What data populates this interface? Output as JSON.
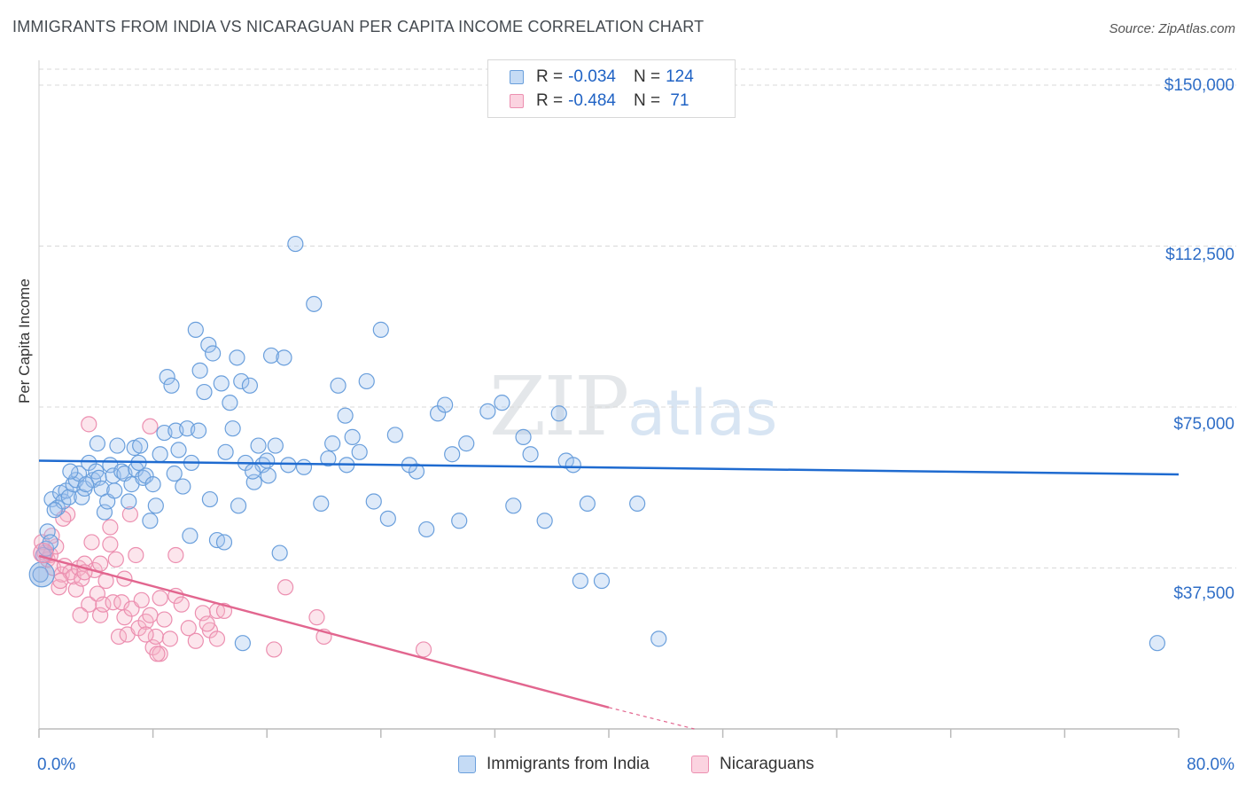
{
  "title": "IMMIGRANTS FROM INDIA VS NICARAGUAN PER CAPITA INCOME CORRELATION CHART",
  "source": "Source: ZipAtlas.com",
  "watermark": {
    "zip": "ZIP",
    "atlas": "atlas"
  },
  "legend_top": [
    {
      "r_label": "R = ",
      "r_value": "-0.034",
      "n_label": "N = ",
      "n_value": "124",
      "color": "#a8c8f0"
    },
    {
      "r_label": "R = ",
      "r_value": "-0.484",
      "n_label": "N = ",
      "n_value": " 71",
      "color": "#f5b5c9"
    }
  ],
  "legend_bottom": [
    {
      "label": "Immigrants from India",
      "color": "#a8c8f0"
    },
    {
      "label": "Nicaraguans",
      "color": "#f5b5c9"
    }
  ],
  "colors": {
    "india_stroke": "#6a9fdc",
    "india_fill": "rgba(160,196,238,0.35)",
    "india_line": "#1f6bd0",
    "nica_stroke": "#ec8fb0",
    "nica_fill": "rgba(245,181,201,0.35)",
    "nica_line": "#e2668f",
    "axis_text": "#2f6ec7",
    "grid": "#d8d8d8"
  },
  "chart_data": {
    "type": "scatter",
    "title": "IMMIGRANTS FROM INDIA VS NICARAGUAN PER CAPITA INCOME CORRELATION CHART",
    "xlabel": "",
    "ylabel": "Per Capita Income",
    "xlim": [
      0,
      80
    ],
    "ylim": [
      0,
      155000
    ],
    "x_tick_labels": [
      "0.0%",
      "80.0%"
    ],
    "y_ticks": [
      37500,
      75000,
      112500,
      150000
    ],
    "y_tick_labels": [
      "$37,500",
      "$75,000",
      "$112,500",
      "$150,000"
    ],
    "grid": "horizontal dashed",
    "legend_position": "top-center",
    "series": [
      {
        "name": "Immigrants from India",
        "r": -0.034,
        "n": 124,
        "trend": {
          "x": [
            0,
            80
          ],
          "y": [
            62500,
            59300
          ]
        },
        "points": [
          [
            0.1,
            36000
          ],
          [
            0.3,
            40500
          ],
          [
            0.5,
            42000
          ],
          [
            0.6,
            46000
          ],
          [
            0.9,
            53500
          ],
          [
            1.3,
            51500
          ],
          [
            1.5,
            55000
          ],
          [
            1.7,
            53000
          ],
          [
            1.9,
            55500
          ],
          [
            2.1,
            54000
          ],
          [
            2.4,
            57000
          ],
          [
            2.6,
            58000
          ],
          [
            2.8,
            59500
          ],
          [
            3.0,
            54000
          ],
          [
            3.2,
            56000
          ],
          [
            3.5,
            62000
          ],
          [
            3.8,
            58000
          ],
          [
            4.0,
            60000
          ],
          [
            4.2,
            58500
          ],
          [
            4.4,
            56000
          ],
          [
            4.6,
            50500
          ],
          [
            4.8,
            53000
          ],
          [
            5.0,
            61500
          ],
          [
            5.2,
            59000
          ],
          [
            5.5,
            66000
          ],
          [
            5.8,
            60000
          ],
          [
            6.0,
            59500
          ],
          [
            6.3,
            53000
          ],
          [
            6.5,
            57000
          ],
          [
            6.8,
            60500
          ],
          [
            7.0,
            62000
          ],
          [
            7.3,
            58500
          ],
          [
            7.5,
            59000
          ],
          [
            7.8,
            48500
          ],
          [
            8.0,
            57000
          ],
          [
            8.2,
            52000
          ],
          [
            8.5,
            64000
          ],
          [
            8.8,
            69000
          ],
          [
            9.0,
            82000
          ],
          [
            9.3,
            80000
          ],
          [
            9.6,
            69500
          ],
          [
            9.8,
            65000
          ],
          [
            10.1,
            56500
          ],
          [
            10.4,
            70000
          ],
          [
            10.7,
            62000
          ],
          [
            11.0,
            93000
          ],
          [
            11.3,
            83500
          ],
          [
            11.6,
            78500
          ],
          [
            11.9,
            89500
          ],
          [
            12.2,
            87500
          ],
          [
            12.5,
            44000
          ],
          [
            12.8,
            80500
          ],
          [
            13.1,
            64500
          ],
          [
            13.4,
            76000
          ],
          [
            13.6,
            70000
          ],
          [
            13.9,
            86500
          ],
          [
            14.2,
            81000
          ],
          [
            14.5,
            62000
          ],
          [
            14.8,
            80000
          ],
          [
            15.1,
            57500
          ],
          [
            15.4,
            66000
          ],
          [
            15.7,
            61500
          ],
          [
            16.0,
            62500
          ],
          [
            16.3,
            87000
          ],
          [
            16.6,
            66000
          ],
          [
            16.9,
            41000
          ],
          [
            17.2,
            86500
          ],
          [
            17.5,
            61500
          ],
          [
            18.0,
            113000
          ],
          [
            19.3,
            99000
          ],
          [
            19.8,
            52500
          ],
          [
            20.3,
            63000
          ],
          [
            20.6,
            66500
          ],
          [
            21.0,
            80000
          ],
          [
            21.5,
            73000
          ],
          [
            22.0,
            68000
          ],
          [
            22.5,
            64500
          ],
          [
            23.0,
            81000
          ],
          [
            23.5,
            53000
          ],
          [
            24.0,
            93000
          ],
          [
            24.5,
            49000
          ],
          [
            25.0,
            68500
          ],
          [
            26.5,
            60000
          ],
          [
            27.2,
            46500
          ],
          [
            28.0,
            73500
          ],
          [
            28.5,
            75500
          ],
          [
            29.0,
            64000
          ],
          [
            29.5,
            48500
          ],
          [
            30.0,
            66500
          ],
          [
            31.5,
            74000
          ],
          [
            32.5,
            76000
          ],
          [
            33.3,
            52000
          ],
          [
            34.0,
            68000
          ],
          [
            34.5,
            64000
          ],
          [
            35.5,
            48500
          ],
          [
            36.5,
            73500
          ],
          [
            37.0,
            62500
          ],
          [
            37.5,
            61500
          ],
          [
            38.0,
            34500
          ],
          [
            38.5,
            52500
          ],
          [
            39.5,
            34500
          ],
          [
            10.6,
            45000
          ],
          [
            11.2,
            69500
          ],
          [
            13.0,
            43500
          ],
          [
            14.0,
            52000
          ],
          [
            14.3,
            20000
          ],
          [
            6.7,
            65500
          ],
          [
            9.5,
            59500
          ],
          [
            5.3,
            55500
          ],
          [
            3.3,
            57000
          ],
          [
            2.2,
            60000
          ],
          [
            7.1,
            66000
          ],
          [
            4.1,
            66500
          ],
          [
            16.1,
            59000
          ],
          [
            18.6,
            61000
          ],
          [
            21.6,
            61500
          ],
          [
            26.0,
            61500
          ],
          [
            43.5,
            21000
          ],
          [
            78.5,
            20000
          ],
          [
            42.0,
            52500
          ],
          [
            1.1,
            51000
          ],
          [
            0.8,
            43500
          ],
          [
            12.0,
            53500
          ],
          [
            15.0,
            60000
          ]
        ]
      },
      {
        "name": "Nicaraguans",
        "r": -0.484,
        "n": 71,
        "trend": {
          "x": [
            0,
            40
          ],
          "y": [
            40300,
            5000
          ]
        },
        "trend_dashed": {
          "x": [
            40,
            46
          ],
          "y": [
            5000,
            0
          ]
        },
        "points": [
          [
            0.2,
            43500
          ],
          [
            0.4,
            41000
          ],
          [
            0.6,
            39500
          ],
          [
            0.8,
            40500
          ],
          [
            1.0,
            37500
          ],
          [
            1.2,
            42500
          ],
          [
            1.4,
            33000
          ],
          [
            1.6,
            36000
          ],
          [
            1.8,
            38000
          ],
          [
            2.0,
            50000
          ],
          [
            2.2,
            36500
          ],
          [
            2.4,
            35500
          ],
          [
            2.6,
            32500
          ],
          [
            2.8,
            37500
          ],
          [
            3.0,
            35000
          ],
          [
            3.2,
            38500
          ],
          [
            3.5,
            29000
          ],
          [
            3.7,
            43500
          ],
          [
            3.9,
            37000
          ],
          [
            4.1,
            31500
          ],
          [
            4.3,
            26500
          ],
          [
            4.5,
            29000
          ],
          [
            4.7,
            34500
          ],
          [
            5.0,
            43000
          ],
          [
            5.2,
            29500
          ],
          [
            5.4,
            39500
          ],
          [
            5.6,
            21500
          ],
          [
            5.8,
            29500
          ],
          [
            6.0,
            26000
          ],
          [
            6.2,
            22000
          ],
          [
            6.5,
            28000
          ],
          [
            6.8,
            40500
          ],
          [
            7.0,
            23500
          ],
          [
            7.2,
            30000
          ],
          [
            7.5,
            25000
          ],
          [
            7.8,
            26500
          ],
          [
            8.0,
            19000
          ],
          [
            8.2,
            21500
          ],
          [
            8.5,
            17500
          ],
          [
            8.8,
            25500
          ],
          [
            9.2,
            21000
          ],
          [
            9.6,
            31000
          ],
          [
            10.0,
            29000
          ],
          [
            10.5,
            23500
          ],
          [
            11.0,
            20500
          ],
          [
            11.5,
            27000
          ],
          [
            12.0,
            23000
          ],
          [
            12.5,
            27500
          ],
          [
            13.0,
            27500
          ],
          [
            3.5,
            71000
          ],
          [
            7.8,
            70500
          ],
          [
            6.4,
            50000
          ],
          [
            5.0,
            47000
          ],
          [
            4.3,
            38500
          ],
          [
            8.5,
            30500
          ],
          [
            9.6,
            40500
          ],
          [
            3.2,
            36500
          ],
          [
            2.9,
            26500
          ],
          [
            1.5,
            34500
          ],
          [
            0.9,
            45000
          ],
          [
            1.7,
            49000
          ],
          [
            19.5,
            26000
          ],
          [
            20.0,
            21500
          ],
          [
            17.3,
            33000
          ],
          [
            27.0,
            18500
          ],
          [
            16.5,
            18500
          ],
          [
            11.8,
            24500
          ],
          [
            8.3,
            17500
          ],
          [
            6.0,
            35000
          ],
          [
            12.5,
            21000
          ],
          [
            7.5,
            22000
          ]
        ]
      }
    ]
  }
}
